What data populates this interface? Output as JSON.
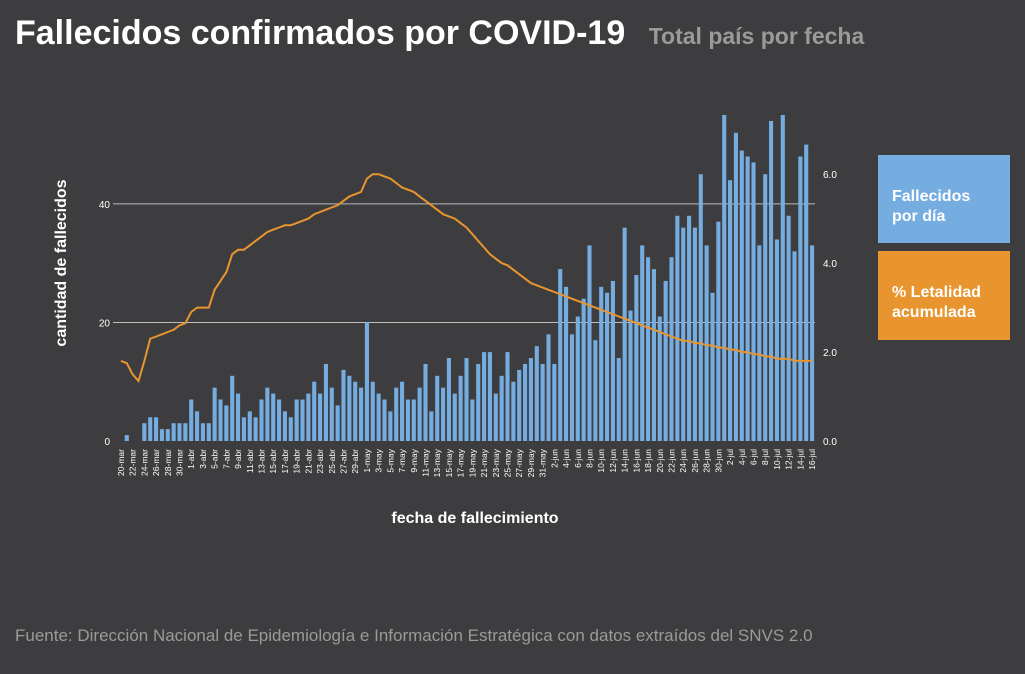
{
  "chart_data": {
    "type": "bar",
    "title": "Fallecidos confirmados por COVID-19",
    "subtitle": "Total país por fecha",
    "y_label": "cantidad de fallecidos",
    "x_label": "fecha de fallecimiento",
    "source": "Fuente: Dirección Nacional de Epidemiología e Información Estratégica con datos extraídos del SNVS 2.0",
    "categories": [
      "20-mar",
      null,
      "22-mar",
      null,
      "24-mar",
      null,
      "26-mar",
      null,
      "28-mar",
      null,
      "30-mar",
      null,
      "1-abr",
      null,
      "3-abr",
      null,
      "5-abr",
      null,
      "7-abr",
      null,
      "9-abr",
      null,
      "11-abr",
      null,
      "13-abr",
      null,
      "15-abr",
      null,
      "17-abr",
      null,
      "19-abr",
      null,
      "21-abr",
      null,
      "23-abr",
      null,
      "25-abr",
      null,
      "27-abr",
      null,
      "29-abr",
      null,
      "1-may",
      null,
      "3-may",
      null,
      "5-may",
      null,
      "7-may",
      null,
      "9-may",
      null,
      "11-may",
      null,
      "13-may",
      null,
      "15-may",
      null,
      "17-may",
      null,
      "19-may",
      null,
      "21-may",
      null,
      "23-may",
      null,
      "25-may",
      null,
      "27-may",
      null,
      "29-may",
      null,
      "31-may",
      null,
      "2-jun",
      null,
      "4-jun",
      null,
      "6-jun",
      null,
      "8-jun",
      null,
      "10-jun",
      null,
      "12-jun",
      null,
      "14-jun",
      null,
      "16-jun",
      null,
      "18-jun",
      null,
      "20-jun",
      null,
      "22-jun",
      null,
      "24-jun",
      null,
      "26-jun",
      null,
      "28-jun",
      null,
      "30-jun",
      null,
      "2-jul",
      null,
      "4-jul",
      null,
      "6-jul",
      null,
      "8-jul",
      null,
      "10-jul",
      null,
      "12-jul",
      null,
      "14-jul",
      null,
      "16-jul"
    ],
    "series": [
      {
        "name": "Fallecidos por día",
        "type": "bar",
        "color": "#75ade0",
        "values": [
          0,
          1,
          0,
          0,
          3,
          4,
          4,
          2,
          2,
          3,
          3,
          3,
          7,
          5,
          3,
          3,
          9,
          7,
          6,
          11,
          8,
          4,
          5,
          4,
          7,
          9,
          8,
          7,
          5,
          4,
          7,
          7,
          8,
          10,
          8,
          13,
          9,
          6,
          12,
          11,
          10,
          9,
          20,
          10,
          8,
          7,
          5,
          9,
          10,
          7,
          7,
          9,
          13,
          5,
          11,
          9,
          14,
          8,
          11,
          14,
          7,
          13,
          15,
          15,
          8,
          11,
          15,
          10,
          12,
          13,
          14,
          16,
          13,
          18,
          13,
          29,
          26,
          18,
          21,
          24,
          33,
          17,
          26,
          25,
          27,
          14,
          36,
          22,
          28,
          33,
          31,
          29,
          21,
          27,
          31,
          38,
          36,
          38,
          36,
          45,
          33,
          25,
          37,
          55,
          44,
          52,
          49,
          48,
          47,
          33,
          45,
          54,
          34,
          55,
          38,
          32,
          48,
          50,
          33
        ]
      },
      {
        "name": "% Letalidad acumulada",
        "type": "line",
        "axis": "y2",
        "color": "#e8952f",
        "values": [
          1.8,
          1.75,
          1.5,
          1.35,
          1.8,
          2.3,
          2.35,
          2.4,
          2.45,
          2.5,
          2.6,
          2.65,
          2.9,
          3.0,
          3.0,
          3.0,
          3.4,
          3.6,
          3.8,
          4.2,
          4.3,
          4.3,
          4.4,
          4.5,
          4.6,
          4.7,
          4.75,
          4.8,
          4.85,
          4.85,
          4.9,
          4.95,
          5.0,
          5.1,
          5.15,
          5.2,
          5.25,
          5.3,
          5.4,
          5.5,
          5.55,
          5.6,
          5.9,
          6.0,
          6.0,
          5.95,
          5.9,
          5.8,
          5.7,
          5.65,
          5.6,
          5.5,
          5.4,
          5.3,
          5.2,
          5.1,
          5.05,
          5.0,
          4.9,
          4.8,
          4.65,
          4.5,
          4.35,
          4.2,
          4.1,
          4.0,
          3.95,
          3.85,
          3.75,
          3.65,
          3.55,
          3.5,
          3.45,
          3.4,
          3.35,
          3.3,
          3.25,
          3.2,
          3.15,
          3.1,
          3.05,
          3.0,
          2.95,
          2.9,
          2.85,
          2.8,
          2.75,
          2.7,
          2.65,
          2.6,
          2.55,
          2.5,
          2.45,
          2.4,
          2.35,
          2.3,
          2.25,
          2.25,
          2.2,
          2.2,
          2.15,
          2.15,
          2.1,
          2.1,
          2.05,
          2.05,
          2.0,
          2.0,
          1.95,
          1.95,
          1.9,
          1.9,
          1.85,
          1.85,
          1.85,
          1.8,
          1.8,
          1.8,
          1.8
        ]
      }
    ],
    "ylim": [
      0,
      55
    ],
    "yticks": [
      0,
      20,
      40
    ],
    "y2lim": [
      0,
      7.33
    ],
    "y2ticks": [
      {
        "value": 0,
        "label": "0.0"
      },
      {
        "value": 2,
        "label": "2.0"
      },
      {
        "value": 4,
        "label": "4.0"
      },
      {
        "value": 6,
        "label": "6.0"
      }
    ],
    "grid": true,
    "legend": "right"
  }
}
